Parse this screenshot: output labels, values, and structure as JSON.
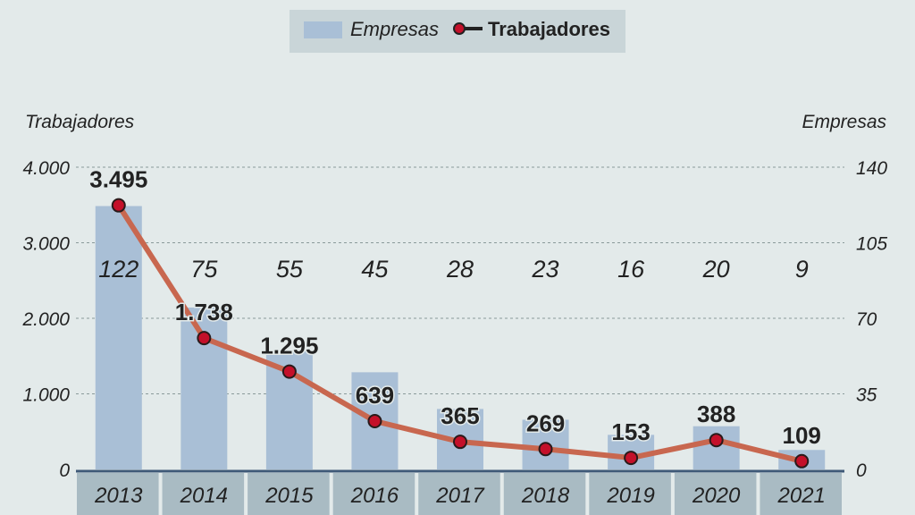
{
  "chart_data": {
    "type": "bar+line",
    "categories": [
      "2013",
      "2014",
      "2015",
      "2016",
      "2017",
      "2018",
      "2019",
      "2020",
      "2021"
    ],
    "series": [
      {
        "name": "Empresas",
        "type": "bar",
        "axis": "right",
        "values": [
          122,
          75,
          55,
          45,
          28,
          23,
          16,
          20,
          9
        ],
        "labels": [
          "122",
          "75",
          "55",
          "45",
          "28",
          "23",
          "16",
          "20",
          "9"
        ],
        "color": "#a9bfd6"
      },
      {
        "name": "Trabajadores",
        "type": "line",
        "axis": "left",
        "values": [
          3495,
          1738,
          1295,
          639,
          365,
          269,
          153,
          388,
          109
        ],
        "labels": [
          "3.495",
          "1.738",
          "1.295",
          "639",
          "365",
          "269",
          "153",
          "388",
          "109"
        ],
        "color": "#c8674f",
        "marker_color": "#c4102a"
      }
    ],
    "ylabel_left": "Trabajadores",
    "ylabel_right": "Empresas",
    "ylim_left": [
      0,
      4000
    ],
    "ylim_right": [
      0,
      140
    ],
    "yticks_left": [
      "0",
      "1.000",
      "2.000",
      "3.000",
      "4.000"
    ],
    "yticks_left_values": [
      0,
      1000,
      2000,
      3000,
      4000
    ],
    "yticks_right": [
      "0",
      "35",
      "70",
      "105",
      "140"
    ],
    "yticks_right_values": [
      0,
      35,
      70,
      105,
      140
    ],
    "grid": "horizontal dashed",
    "legend": {
      "placement": "top-center",
      "items": [
        "Empresas",
        "Trabajadores"
      ]
    }
  }
}
